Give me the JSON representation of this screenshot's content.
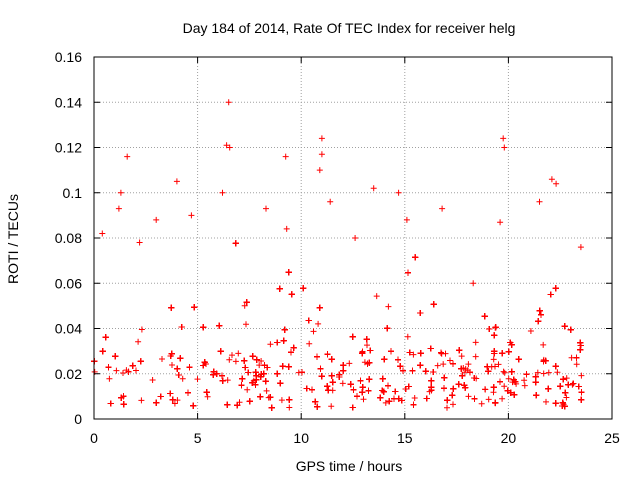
{
  "chart_data": {
    "type": "scatter",
    "title": "Day 184 of 2014, Rate Of TEC Index for receiver helg",
    "xlabel": "GPS time / hours",
    "ylabel": "ROTI / TECUs",
    "xlim": [
      0,
      25
    ],
    "ylim": [
      0,
      0.16
    ],
    "xticks": [
      0,
      5,
      10,
      15,
      20,
      25
    ],
    "xtick_labels": [
      "0",
      "5",
      "10",
      "15",
      "20",
      "25"
    ],
    "yticks": [
      0,
      0.02,
      0.04,
      0.06,
      0.08,
      0.1,
      0.12,
      0.14,
      0.16
    ],
    "ytick_labels": [
      "0",
      "0.02",
      "0.04",
      "0.06",
      "0.08",
      "0.1",
      "0.12",
      "0.14",
      "0.16"
    ],
    "grid": true,
    "marker": "+",
    "marker_color": "#ff0000",
    "x_extent": [
      0,
      23.6
    ],
    "typical_band": [
      0.005,
      0.03
    ],
    "envelope": {
      "x": [
        0,
        0.5,
        1.0,
        1.5,
        2.0,
        2.5,
        3.0,
        3.5,
        4.0,
        4.5,
        5.0,
        5.5,
        6.0,
        6.5,
        7.0,
        7.5,
        8.0,
        8.5,
        9.0,
        9.5,
        10.0,
        10.5,
        11.0,
        11.5,
        12.0,
        12.5,
        13.0,
        13.5,
        14.0,
        14.5,
        15.0,
        15.5,
        16.0,
        16.5,
        17.0,
        17.5,
        18.0,
        18.5,
        19.0,
        19.5,
        20.0,
        20.5,
        21.0,
        21.5,
        22.0,
        22.5,
        23.0,
        23.5
      ],
      "ymax": [
        0.05,
        0.07,
        0.06,
        0.08,
        0.05,
        0.07,
        0.04,
        0.06,
        0.07,
        0.06,
        0.05,
        0.06,
        0.09,
        0.1,
        0.08,
        0.07,
        0.06,
        0.05,
        0.07,
        0.08,
        0.07,
        0.09,
        0.07,
        0.06,
        0.05,
        0.06,
        0.07,
        0.06,
        0.08,
        0.07,
        0.09,
        0.08,
        0.06,
        0.05,
        0.06,
        0.05,
        0.04,
        0.05,
        0.06,
        0.07,
        0.06,
        0.05,
        0.06,
        0.07,
        0.08,
        0.07,
        0.06,
        0.05
      ]
    },
    "notable_points": [
      {
        "x": 6.5,
        "y": 0.14
      },
      {
        "x": 6.4,
        "y": 0.121
      },
      {
        "x": 6.55,
        "y": 0.12
      },
      {
        "x": 19.75,
        "y": 0.124
      },
      {
        "x": 11.0,
        "y": 0.124
      },
      {
        "x": 19.8,
        "y": 0.12
      },
      {
        "x": 1.6,
        "y": 0.116
      },
      {
        "x": 9.25,
        "y": 0.116
      },
      {
        "x": 11.0,
        "y": 0.117
      },
      {
        "x": 1.3,
        "y": 0.1
      },
      {
        "x": 1.2,
        "y": 0.093
      },
      {
        "x": 22.1,
        "y": 0.106
      },
      {
        "x": 22.3,
        "y": 0.104
      },
      {
        "x": 4.0,
        "y": 0.105
      },
      {
        "x": 6.2,
        "y": 0.1
      },
      {
        "x": 14.7,
        "y": 0.1
      },
      {
        "x": 11.4,
        "y": 0.096
      },
      {
        "x": 21.5,
        "y": 0.096
      },
      {
        "x": 0.4,
        "y": 0.082
      },
      {
        "x": 15.1,
        "y": 0.088
      },
      {
        "x": 16.8,
        "y": 0.093
      },
      {
        "x": 23.5,
        "y": 0.076
      },
      {
        "x": 19.6,
        "y": 0.087
      },
      {
        "x": 9.3,
        "y": 0.084
      },
      {
        "x": 3.0,
        "y": 0.088
      },
      {
        "x": 13.5,
        "y": 0.102
      },
      {
        "x": 10.9,
        "y": 0.11
      },
      {
        "x": 8.3,
        "y": 0.093
      },
      {
        "x": 2.2,
        "y": 0.078
      },
      {
        "x": 4.7,
        "y": 0.09
      },
      {
        "x": 12.6,
        "y": 0.08
      },
      {
        "x": 18.3,
        "y": 0.06
      }
    ]
  }
}
